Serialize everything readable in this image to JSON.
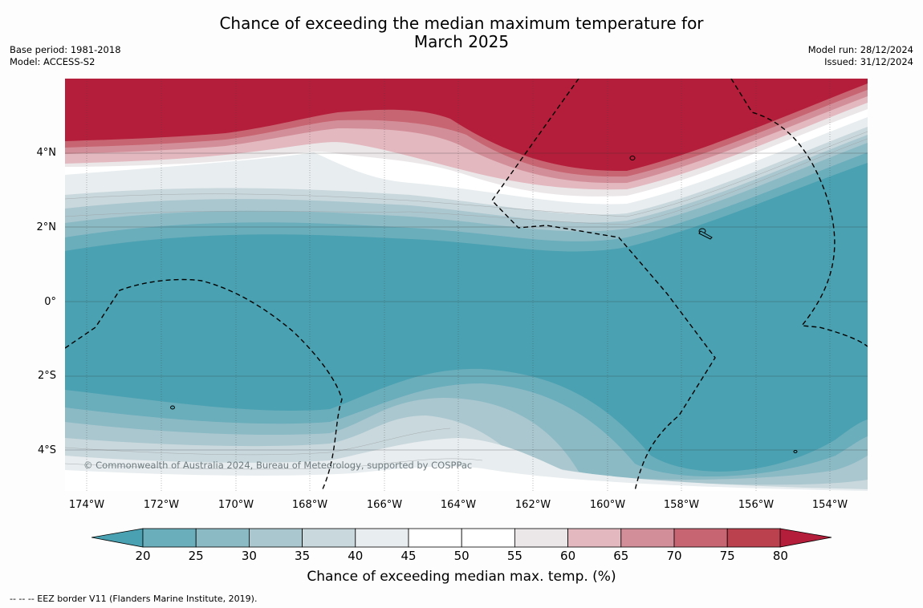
{
  "title": {
    "line1": "Chance of exceeding the median maximum temperature for",
    "line2": "March 2025"
  },
  "meta_left": {
    "base_period": "Base period: 1981-2018",
    "model": "Model: ACCESS-S2"
  },
  "meta_right": {
    "model_run": "Model run: 28/12/2024",
    "issued": "Issued: 31/12/2024"
  },
  "map": {
    "lat_labels": [
      "4°N",
      "2°N",
      "0°",
      "2°S",
      "4°S"
    ],
    "lon_labels": [
      "174°W",
      "172°W",
      "170°W",
      "168°W",
      "166°W",
      "164°W",
      "162°W",
      "160°W",
      "158°W",
      "156°W",
      "154°W"
    ],
    "copyright": "© Commonwealth of Australia 2024, Bureau of Meteorology, supported by COSPPac",
    "dominant_field": "20-25 below median band across equator; 75-80 above median band north of 3°N"
  },
  "colorbar": {
    "ticks": [
      "20",
      "25",
      "30",
      "35",
      "40",
      "45",
      "50",
      "55",
      "60",
      "65",
      "70",
      "75",
      "80"
    ],
    "colors": [
      "#4aa1b1",
      "#6aadbb",
      "#8bbac5",
      "#aac7cf",
      "#c9d8dd",
      "#e8edef",
      "#ffffff",
      "#ffffff",
      "#ebe7e9",
      "#e3b8bf",
      "#d38f99",
      "#c76572",
      "#bb414f",
      "#b41e3a"
    ],
    "label": "Chance of exceeding median max. temp. (%)"
  },
  "legend_note": "--  --  -- EEZ border V11 (Flanders Marine Institute, 2019)."
}
